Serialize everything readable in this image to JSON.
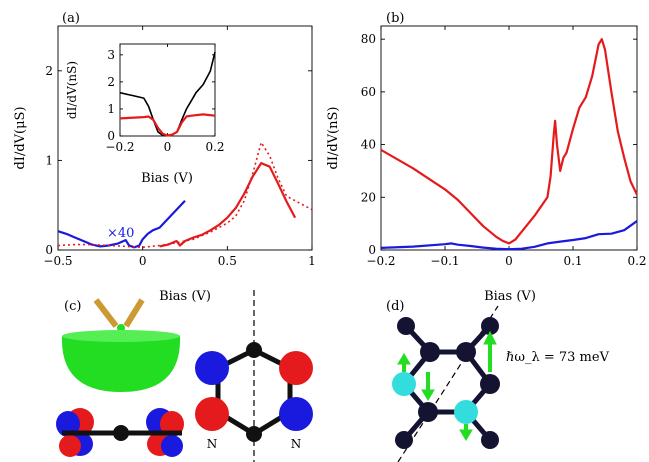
{
  "panels": {
    "a": "(a)",
    "b": "(b)",
    "c": "(c)",
    "d": "(d)"
  },
  "colors": {
    "red": "#e41a1c",
    "blue": "#1a1adf",
    "black": "#000000",
    "green": "#22dd22",
    "cyan": "#33dddd",
    "atom": "#141432",
    "tip": "#cc9933"
  },
  "chart_data": [
    {
      "type": "line",
      "panel": "(a)",
      "xlabel": "Bias (V)",
      "ylabel": "dI/dV(μS)",
      "xlim": [
        -0.5,
        1.0
      ],
      "ylim": [
        0,
        2.5
      ],
      "xticks": [
        "−0.5",
        "0",
        "0.5",
        "1"
      ],
      "yticks": [
        "0",
        "1",
        "2"
      ],
      "annotation": "×40",
      "series": [
        {
          "style": "blue-solid",
          "x": [
            -0.5,
            -0.45,
            -0.4,
            -0.35,
            -0.3,
            -0.25,
            -0.2,
            -0.15,
            -0.1,
            -0.08,
            -0.05,
            -0.02,
            0.0,
            0.03,
            0.06,
            0.1,
            0.15,
            0.2,
            0.25
          ],
          "y": [
            0.21,
            0.18,
            0.14,
            0.1,
            0.06,
            0.04,
            0.05,
            0.07,
            0.11,
            0.05,
            0.03,
            0.05,
            0.12,
            0.18,
            0.22,
            0.25,
            0.35,
            0.45,
            0.55
          ]
        },
        {
          "style": "red-solid",
          "x": [
            0.1,
            0.15,
            0.2,
            0.22,
            0.25,
            0.3,
            0.35,
            0.4,
            0.45,
            0.5,
            0.55,
            0.6,
            0.65,
            0.7,
            0.75,
            0.8,
            0.85,
            0.9
          ],
          "y": [
            0.04,
            0.06,
            0.1,
            0.05,
            0.1,
            0.14,
            0.17,
            0.22,
            0.28,
            0.36,
            0.47,
            0.63,
            0.82,
            0.97,
            0.93,
            0.74,
            0.54,
            0.36
          ]
        },
        {
          "style": "red-dotted",
          "x": [
            -0.5,
            -0.4,
            -0.3,
            -0.2,
            -0.1,
            0.0,
            0.1,
            0.2,
            0.3,
            0.4,
            0.5,
            0.55,
            0.6,
            0.65,
            0.7,
            0.75,
            0.8,
            0.85,
            0.9,
            1.0
          ],
          "y": [
            0.05,
            0.06,
            0.06,
            0.05,
            0.04,
            0.03,
            0.05,
            0.08,
            0.12,
            0.2,
            0.3,
            0.38,
            0.55,
            0.85,
            1.2,
            1.05,
            0.8,
            0.6,
            0.55,
            0.45
          ]
        }
      ]
    },
    {
      "type": "line",
      "panel": "(a) inset",
      "xlabel": "Bias (V)",
      "ylabel": "dI/dV(nS)",
      "xlim": [
        -0.2,
        0.2
      ],
      "ylim": [
        0,
        3.4
      ],
      "xticks": [
        "−0.2",
        "0",
        "0.2"
      ],
      "yticks": [
        "0",
        "1",
        "2",
        "3"
      ],
      "series": [
        {
          "style": "black-solid",
          "x": [
            -0.2,
            -0.15,
            -0.1,
            -0.08,
            -0.06,
            -0.04,
            -0.02,
            0.0,
            0.02,
            0.04,
            0.06,
            0.08,
            0.1,
            0.12,
            0.15,
            0.18,
            0.2
          ],
          "y": [
            1.6,
            1.5,
            1.4,
            1.1,
            0.6,
            0.15,
            0.02,
            0.02,
            0.05,
            0.15,
            0.6,
            1.0,
            1.3,
            1.6,
            1.9,
            2.4,
            3.1
          ]
        },
        {
          "style": "red-solid",
          "x": [
            -0.2,
            -0.1,
            -0.08,
            -0.06,
            -0.04,
            -0.02,
            0.0,
            0.02,
            0.04,
            0.06,
            0.08,
            0.1,
            0.15,
            0.2
          ],
          "y": [
            0.65,
            0.7,
            0.72,
            0.6,
            0.3,
            0.08,
            0.02,
            0.05,
            0.15,
            0.5,
            0.72,
            0.75,
            0.8,
            0.75
          ]
        }
      ]
    },
    {
      "type": "line",
      "panel": "(b)",
      "xlabel": "Bias (V)",
      "ylabel": "dI/dV(nS)",
      "xlim": [
        -0.2,
        0.2
      ],
      "ylim": [
        0,
        85
      ],
      "xticks": [
        "−0.2",
        "−0.1",
        "0",
        "0.1",
        "0.2"
      ],
      "yticks": [
        "0",
        "20",
        "40",
        "60",
        "80"
      ],
      "series": [
        {
          "style": "red-solid",
          "x": [
            -0.2,
            -0.15,
            -0.1,
            -0.08,
            -0.06,
            -0.04,
            -0.02,
            -0.01,
            0.0,
            0.01,
            0.02,
            0.04,
            0.06,
            0.065,
            0.07,
            0.072,
            0.075,
            0.08,
            0.085,
            0.09,
            0.1,
            0.11,
            0.12,
            0.13,
            0.14,
            0.145,
            0.15,
            0.16,
            0.17,
            0.18,
            0.19,
            0.2
          ],
          "y": [
            38,
            31,
            23,
            19,
            14,
            9,
            5,
            3.5,
            2.5,
            4,
            7,
            13,
            20,
            28,
            44,
            49,
            40,
            30,
            35,
            37,
            46,
            54,
            58,
            66,
            78,
            80,
            76,
            60,
            45,
            35,
            26,
            21
          ]
        },
        {
          "style": "blue-solid",
          "x": [
            -0.2,
            -0.15,
            -0.1,
            -0.09,
            -0.08,
            -0.06,
            -0.04,
            -0.02,
            0.0,
            0.02,
            0.04,
            0.06,
            0.08,
            0.1,
            0.12,
            0.14,
            0.16,
            0.18,
            0.2
          ],
          "y": [
            0.8,
            1.3,
            2.2,
            2.5,
            2.0,
            1.5,
            0.9,
            0.5,
            0.3,
            0.5,
            1.2,
            2.5,
            3.2,
            3.8,
            4.5,
            6.0,
            6.2,
            7.5,
            11
          ]
        }
      ]
    }
  ],
  "panel_d": {
    "annotation": "ℏω_λ = 73 meV"
  },
  "panel_c": {
    "n_left": "N",
    "n_right": "N"
  }
}
